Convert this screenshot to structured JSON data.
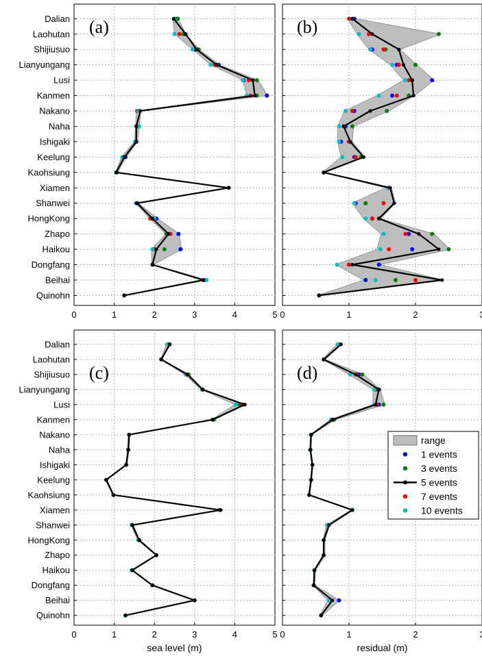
{
  "chart_data": [
    {
      "panel": "(a)",
      "type": "line",
      "xlim": [
        0,
        5
      ],
      "xticks": [
        0,
        1,
        2,
        3,
        4,
        5
      ],
      "xlabel": "",
      "categories": [
        "Dalian",
        "Laohutan",
        "Shijiusuo",
        "Lianyungang",
        "Lusi",
        "Kanmen",
        "Nakano",
        "Naha",
        "Ishigaki",
        "Keelung",
        "Kaohsiung",
        "Xiamen",
        "Shanwei",
        "HongKong",
        "Zhapo",
        "Haikou",
        "Dongfang",
        "Beihai",
        "Quinohn"
      ],
      "series": [
        {
          "name": "1 events",
          "values": [
            2.55,
            2.75,
            3.0,
            3.6,
            4.22,
            4.8,
            1.6,
            1.55,
            1.55,
            1.28,
            1.05,
            3.85,
            1.55,
            2.05,
            2.6,
            2.65,
            1.95,
            3.25,
            1.25
          ]
        },
        {
          "name": "3 events",
          "values": [
            2.58,
            2.72,
            3.1,
            3.55,
            4.55,
            4.55,
            1.6,
            1.58,
            1.52,
            1.25,
            1.07,
            3.85,
            1.57,
            1.95,
            2.3,
            2.25,
            1.95,
            3.25,
            1.25
          ]
        },
        {
          "name": "5 events",
          "values": [
            2.48,
            2.78,
            3.05,
            3.55,
            4.45,
            4.5,
            1.65,
            1.55,
            1.55,
            1.25,
            1.05,
            3.85,
            1.57,
            1.95,
            2.35,
            2.05,
            1.95,
            3.22,
            1.25
          ]
        },
        {
          "name": "7 events",
          "values": [
            2.5,
            2.62,
            3.05,
            3.5,
            4.35,
            4.4,
            1.57,
            1.55,
            1.53,
            1.22,
            1.05,
            3.85,
            1.57,
            1.9,
            2.4,
            2.0,
            1.95,
            3.22,
            1.25
          ]
        },
        {
          "name": "10 events",
          "values": [
            2.5,
            2.5,
            2.95,
            3.4,
            4.2,
            4.3,
            1.6,
            1.62,
            1.52,
            1.2,
            1.05,
            3.85,
            1.57,
            2.0,
            2.35,
            1.95,
            1.95,
            3.3,
            1.25
          ]
        }
      ],
      "range": {
        "min": [
          2.45,
          2.5,
          2.95,
          3.4,
          4.2,
          4.3,
          1.55,
          1.53,
          1.5,
          1.18,
          1.03,
          3.82,
          1.53,
          1.88,
          2.28,
          1.93,
          1.93,
          3.2,
          1.23
        ],
        "max": [
          2.6,
          2.78,
          3.12,
          3.62,
          4.58,
          4.82,
          1.66,
          1.63,
          1.58,
          1.3,
          1.08,
          3.88,
          1.6,
          2.08,
          2.62,
          2.68,
          1.98,
          3.32,
          1.28
        ]
      }
    },
    {
      "panel": "(b)",
      "type": "line",
      "xlim": [
        0,
        3
      ],
      "xticks": [
        0,
        1,
        2,
        3
      ],
      "xlabel": "",
      "categories": [
        "Dalian",
        "Laohutan",
        "Shijiusuo",
        "Lianyungang",
        "Lusi",
        "Kanmen",
        "Nakano",
        "Naha",
        "Ishigaki",
        "Keelung",
        "Kaohsiung",
        "Xiamen",
        "Shanwei",
        "HongKong",
        "Zhapo",
        "Haikou",
        "Dongfang",
        "Beihai",
        "Quinohn"
      ],
      "series": [
        {
          "name": "1 events",
          "values": [
            1.08,
            1.3,
            1.35,
            1.72,
            2.25,
            1.65,
            1.08,
            0.95,
            0.88,
            1.08,
            0.62,
            1.6,
            1.1,
            1.35,
            1.9,
            1.95,
            1.45,
            1.25,
            0.55
          ]
        },
        {
          "name": "3 events",
          "values": [
            1.05,
            2.35,
            1.55,
            2.0,
            1.95,
            1.9,
            1.57,
            1.05,
            1.0,
            1.18,
            0.62,
            1.6,
            1.25,
            1.45,
            2.25,
            2.5,
            1.0,
            1.7,
            0.55
          ]
        },
        {
          "name": "5 events",
          "values": [
            1.05,
            1.35,
            1.75,
            1.82,
            1.95,
            1.97,
            1.32,
            0.92,
            1.02,
            1.22,
            0.62,
            1.62,
            1.68,
            1.45,
            2.05,
            2.35,
            1.05,
            2.4,
            0.55
          ]
        },
        {
          "name": "7 events",
          "values": [
            1.0,
            1.3,
            1.52,
            1.75,
            1.9,
            1.72,
            1.05,
            0.92,
            1.0,
            1.1,
            0.62,
            1.6,
            1.52,
            1.35,
            1.85,
            1.6,
            1.0,
            2.0,
            0.55
          ]
        },
        {
          "name": "10 events",
          "values": [
            1.05,
            1.15,
            1.32,
            1.65,
            1.85,
            1.45,
            0.95,
            0.85,
            0.85,
            0.9,
            0.62,
            1.58,
            1.08,
            1.25,
            1.52,
            1.47,
            0.82,
            1.4,
            0.55
          ]
        }
      ],
      "range": {
        "min": [
          0.98,
          1.12,
          1.3,
          1.62,
          1.82,
          1.42,
          0.93,
          0.83,
          0.83,
          0.88,
          0.6,
          1.55,
          1.05,
          1.22,
          1.48,
          1.42,
          0.8,
          1.22,
          0.53
        ],
        "max": [
          1.1,
          2.38,
          1.77,
          2.02,
          2.28,
          1.99,
          1.6,
          1.07,
          1.05,
          1.24,
          0.64,
          1.64,
          1.7,
          1.48,
          2.28,
          2.52,
          1.47,
          2.42,
          0.57
        ]
      }
    },
    {
      "panel": "(c)",
      "type": "line",
      "xlim": [
        0,
        5
      ],
      "xticks": [
        0,
        1,
        2,
        3,
        4,
        5
      ],
      "xlabel": "sea level (m)",
      "categories": [
        "Dalian",
        "Laohutan",
        "Shijiusuo",
        "Lianyungang",
        "Lusi",
        "Kanmen",
        "Nakano",
        "Naha",
        "Ishigaki",
        "Keelung",
        "Kaohsiung",
        "Xiamen",
        "Shanwei",
        "HongKong",
        "Zhapo",
        "Haikou",
        "Dongfang",
        "Beihai",
        "Quinohn"
      ],
      "series": [
        {
          "name": "1 events",
          "values": [
            2.35,
            2.17,
            2.8,
            3.2,
            4.2,
            3.45,
            1.37,
            1.35,
            1.3,
            0.8,
            0.98,
            3.62,
            1.45,
            1.62,
            2.05,
            1.45,
            1.95,
            3.0,
            1.28
          ]
        },
        {
          "name": "3 events",
          "values": [
            2.38,
            2.17,
            2.85,
            3.2,
            4.12,
            3.48,
            1.37,
            1.35,
            1.3,
            0.8,
            0.98,
            3.62,
            1.45,
            1.62,
            2.05,
            1.45,
            1.95,
            3.0,
            1.28
          ]
        },
        {
          "name": "5 events",
          "values": [
            2.38,
            2.17,
            2.82,
            3.2,
            4.25,
            3.45,
            1.37,
            1.35,
            1.3,
            0.8,
            0.98,
            3.65,
            1.45,
            1.62,
            2.05,
            1.45,
            1.95,
            3.0,
            1.28
          ]
        },
        {
          "name": "7 events",
          "values": [
            2.35,
            2.17,
            2.8,
            3.2,
            4.18,
            3.45,
            1.37,
            1.35,
            1.3,
            0.8,
            0.98,
            3.62,
            1.45,
            1.62,
            2.05,
            1.45,
            1.95,
            3.0,
            1.28
          ]
        },
        {
          "name": "10 events",
          "values": [
            2.32,
            2.17,
            2.78,
            3.18,
            4.02,
            3.45,
            1.37,
            1.35,
            1.3,
            0.8,
            0.98,
            3.62,
            1.43,
            1.6,
            2.05,
            1.43,
            1.95,
            3.0,
            1.28
          ]
        }
      ],
      "range": {
        "min": [
          2.3,
          2.15,
          2.76,
          3.16,
          4.0,
          3.42,
          1.35,
          1.33,
          1.28,
          0.78,
          0.96,
          3.6,
          1.42,
          1.58,
          2.03,
          1.42,
          1.93,
          2.98,
          1.26
        ],
        "max": [
          2.4,
          2.19,
          2.87,
          3.22,
          4.28,
          3.5,
          1.39,
          1.37,
          1.32,
          0.82,
          1.0,
          3.67,
          1.47,
          1.64,
          2.07,
          1.47,
          1.97,
          3.02,
          1.3
        ]
      }
    },
    {
      "panel": "(d)",
      "type": "line",
      "xlim": [
        0,
        3
      ],
      "xticks": [
        0,
        1,
        2,
        3
      ],
      "xlabel": "residual (m)",
      "categories": [
        "Dalian",
        "Laohutan",
        "Shijiusuo",
        "Lianyungang",
        "Lusi",
        "Kanmen",
        "Nakano",
        "Naha",
        "Ishigaki",
        "Keelung",
        "Kaohsiung",
        "Xiamen",
        "Shanwei",
        "HongKong",
        "Zhapo",
        "Haikou",
        "Dongfang",
        "Beihai",
        "Quinohn"
      ],
      "series": [
        {
          "name": "1 events",
          "values": [
            0.85,
            0.62,
            1.15,
            1.45,
            1.45,
            0.75,
            0.43,
            0.42,
            0.45,
            0.43,
            0.4,
            1.05,
            0.68,
            0.62,
            0.62,
            0.48,
            0.47,
            0.85,
            0.58
          ]
        },
        {
          "name": "3 events",
          "values": [
            0.87,
            0.62,
            1.2,
            1.42,
            1.52,
            0.78,
            0.43,
            0.42,
            0.45,
            0.43,
            0.4,
            1.05,
            0.68,
            0.62,
            0.62,
            0.48,
            0.47,
            0.72,
            0.58
          ]
        },
        {
          "name": "5 events",
          "values": [
            0.88,
            0.62,
            1.1,
            1.45,
            1.4,
            0.75,
            0.43,
            0.42,
            0.45,
            0.43,
            0.4,
            1.05,
            0.7,
            0.62,
            0.62,
            0.48,
            0.47,
            0.75,
            0.58
          ]
        },
        {
          "name": "7 events",
          "values": [
            0.85,
            0.62,
            1.12,
            1.4,
            1.42,
            0.75,
            0.43,
            0.42,
            0.45,
            0.43,
            0.4,
            1.05,
            0.68,
            0.62,
            0.62,
            0.48,
            0.47,
            0.72,
            0.58
          ]
        },
        {
          "name": "10 events",
          "values": [
            0.83,
            0.62,
            1.02,
            1.38,
            1.38,
            0.73,
            0.43,
            0.42,
            0.45,
            0.43,
            0.4,
            1.05,
            0.67,
            0.62,
            0.62,
            0.48,
            0.47,
            0.7,
            0.58
          ]
        }
      ],
      "range": {
        "min": [
          0.82,
          0.6,
          1.0,
          1.36,
          1.36,
          0.72,
          0.42,
          0.41,
          0.44,
          0.42,
          0.39,
          1.03,
          0.66,
          0.61,
          0.61,
          0.47,
          0.46,
          0.68,
          0.56
        ],
        "max": [
          0.89,
          0.64,
          1.22,
          1.47,
          1.54,
          0.8,
          0.44,
          0.43,
          0.46,
          0.44,
          0.41,
          1.07,
          0.71,
          0.64,
          0.64,
          0.5,
          0.49,
          0.86,
          0.6
        ]
      }
    }
  ],
  "legend": {
    "placement": "inside panel (d), right",
    "items": [
      {
        "label": "range",
        "kind": "patch",
        "color": "#bebebe"
      },
      {
        "label": "1 events",
        "kind": "marker",
        "color": "#0000ff"
      },
      {
        "label": "3 events",
        "kind": "marker",
        "color": "#008000"
      },
      {
        "label": "5 events",
        "kind": "line-marker",
        "color": "#000000"
      },
      {
        "label": "7 events",
        "kind": "marker",
        "color": "#ff0000"
      },
      {
        "label": "10 events",
        "kind": "marker",
        "color": "#00bfbf"
      }
    ]
  },
  "colors": {
    "1 events": "#0000ff",
    "3 events": "#008000",
    "5 events": "#000000",
    "7 events": "#ff0000",
    "10 events": "#00bfbf",
    "range": "#bebebe",
    "grid": "#9a9a9a"
  },
  "grid": true
}
